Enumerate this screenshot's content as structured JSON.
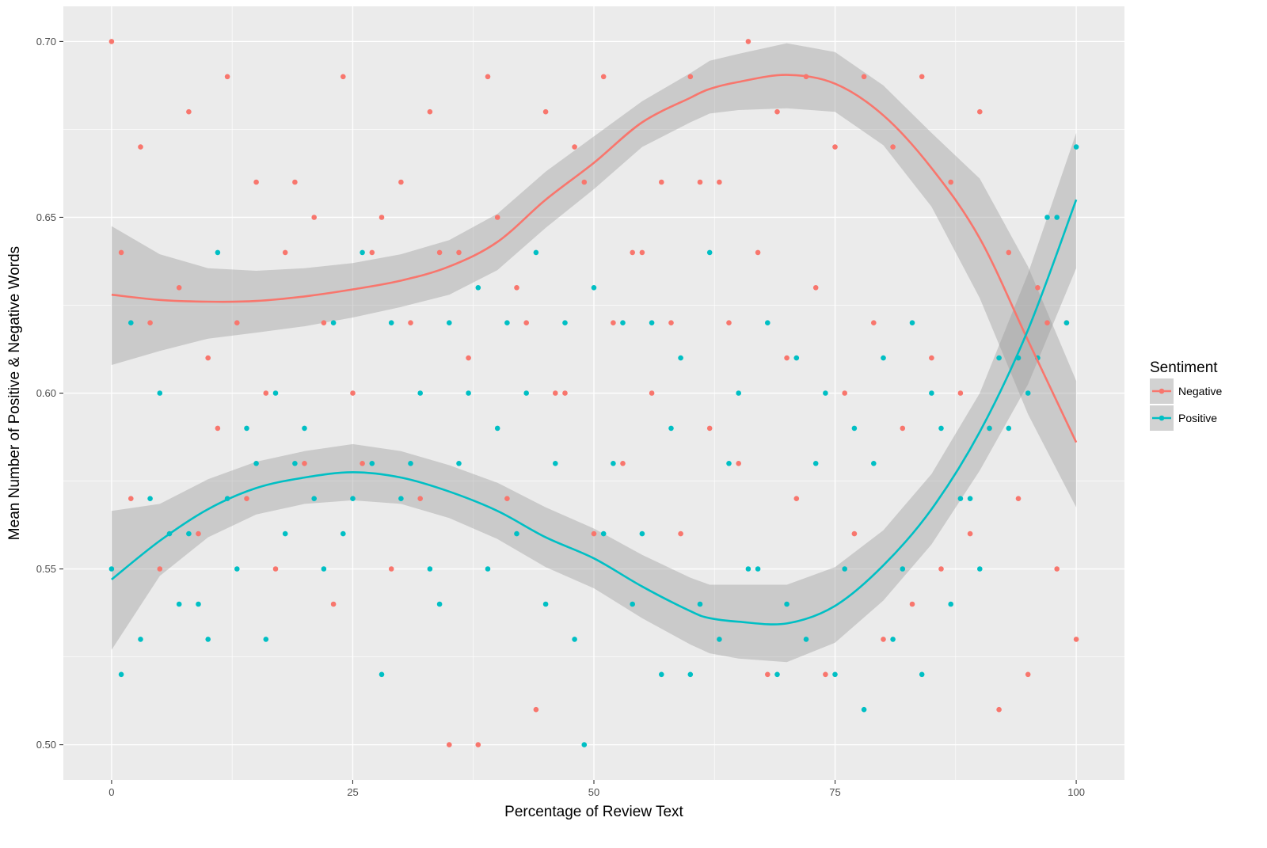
{
  "chart_data": {
    "type": "scatter",
    "xlabel": "Percentage of Review Text",
    "ylabel": "Mean Number of Positive & Negative Words",
    "xlim": [
      -5,
      105
    ],
    "ylim": [
      0.49,
      0.71
    ],
    "x_ticks": [
      0,
      25,
      50,
      75,
      100
    ],
    "x_tick_labels": [
      "0",
      "25",
      "50",
      "75",
      "100"
    ],
    "y_ticks": [
      0.5,
      0.55,
      0.6,
      0.65,
      0.7
    ],
    "y_tick_labels": [
      "0.50",
      "0.55",
      "0.60",
      "0.65",
      "0.70"
    ],
    "grid": true,
    "legend": {
      "title": "Sentiment",
      "position": "right",
      "items": [
        {
          "name": "Negative",
          "color": "#F8766D"
        },
        {
          "name": "Positive",
          "color": "#00BFC4"
        }
      ]
    },
    "series": [
      {
        "name": "Negative",
        "color": "#F8766D",
        "scatter_x": [
          0,
          3,
          8,
          12,
          15,
          18,
          21,
          24,
          27,
          30,
          33,
          36,
          39,
          42,
          45,
          48,
          51,
          54,
          57,
          60,
          63,
          66,
          69,
          72,
          75,
          78,
          81,
          84,
          87,
          90,
          93,
          96,
          99,
          1,
          4,
          7,
          10,
          13,
          16,
          19,
          22,
          25,
          28,
          31,
          34,
          37,
          40,
          43,
          46,
          49,
          52,
          55,
          58,
          61,
          64,
          67,
          70,
          73,
          76,
          79,
          82,
          85,
          88,
          91,
          94,
          97,
          100,
          2,
          5,
          9,
          11,
          14,
          17,
          20,
          23,
          26,
          29,
          32,
          35,
          38,
          41,
          44,
          47,
          50,
          53,
          56,
          59,
          62,
          65,
          68,
          71,
          74,
          77,
          80,
          83,
          86,
          89,
          92,
          95,
          98
        ],
        "scatter_y": [
          0.7,
          0.67,
          0.68,
          0.69,
          0.66,
          0.64,
          0.65,
          0.69,
          0.64,
          0.66,
          0.68,
          0.64,
          0.69,
          0.63,
          0.68,
          0.67,
          0.69,
          0.64,
          0.66,
          0.69,
          0.66,
          0.7,
          0.68,
          0.69,
          0.67,
          0.69,
          0.67,
          0.69,
          0.66,
          0.68,
          0.64,
          0.63,
          0.62,
          0.64,
          0.62,
          0.63,
          0.61,
          0.62,
          0.6,
          0.66,
          0.62,
          0.6,
          0.65,
          0.62,
          0.64,
          0.61,
          0.65,
          0.62,
          0.6,
          0.66,
          0.62,
          0.64,
          0.62,
          0.66,
          0.62,
          0.64,
          0.61,
          0.63,
          0.6,
          0.62,
          0.59,
          0.61,
          0.6,
          0.59,
          0.57,
          0.62,
          0.53,
          0.57,
          0.55,
          0.56,
          0.59,
          0.57,
          0.55,
          0.58,
          0.54,
          0.58,
          0.55,
          0.57,
          0.5,
          0.5,
          0.57,
          0.51,
          0.6,
          0.56,
          0.58,
          0.6,
          0.56,
          0.59,
          0.58,
          0.52,
          0.57,
          0.52,
          0.56,
          0.53,
          0.54,
          0.55,
          0.56,
          0.51,
          0.52,
          0.55
        ]
      },
      {
        "name": "Positive",
        "color": "#00BFC4",
        "scatter_x": [
          0,
          3,
          6,
          9,
          12,
          15,
          18,
          21,
          24,
          27,
          30,
          33,
          36,
          39,
          42,
          45,
          48,
          51,
          54,
          57,
          60,
          63,
          66,
          69,
          72,
          75,
          78,
          81,
          84,
          87,
          90,
          93,
          96,
          99,
          1,
          4,
          7,
          10,
          13,
          16,
          19,
          22,
          25,
          28,
          31,
          34,
          37,
          40,
          43,
          46,
          49,
          52,
          55,
          58,
          61,
          64,
          67,
          70,
          73,
          76,
          79,
          82,
          85,
          88,
          91,
          94,
          97,
          100,
          2,
          5,
          8,
          11,
          14,
          17,
          20,
          23,
          26,
          29,
          32,
          35,
          38,
          41,
          44,
          47,
          50,
          53,
          56,
          59,
          62,
          65,
          68,
          71,
          74,
          77,
          80,
          83,
          86,
          89,
          92,
          95,
          98
        ],
        "scatter_y": [
          0.55,
          0.53,
          0.56,
          0.54,
          0.57,
          0.58,
          0.56,
          0.57,
          0.56,
          0.58,
          0.57,
          0.55,
          0.58,
          0.55,
          0.56,
          0.54,
          0.53,
          0.56,
          0.54,
          0.52,
          0.52,
          0.53,
          0.55,
          0.52,
          0.53,
          0.52,
          0.51,
          0.53,
          0.52,
          0.54,
          0.55,
          0.59,
          0.61,
          0.62,
          0.52,
          0.57,
          0.54,
          0.53,
          0.55,
          0.53,
          0.58,
          0.55,
          0.57,
          0.52,
          0.58,
          0.54,
          0.6,
          0.59,
          0.6,
          0.58,
          0.5,
          0.58,
          0.56,
          0.59,
          0.54,
          0.58,
          0.55,
          0.54,
          0.58,
          0.55,
          0.58,
          0.55,
          0.6,
          0.57,
          0.59,
          0.61,
          0.65,
          0.67,
          0.62,
          0.6,
          0.56,
          0.64,
          0.59,
          0.6,
          0.59,
          0.62,
          0.64,
          0.62,
          0.6,
          0.62,
          0.63,
          0.62,
          0.64,
          0.62,
          0.63,
          0.62,
          0.62,
          0.61,
          0.64,
          0.6,
          0.62,
          0.61,
          0.6,
          0.59,
          0.61,
          0.62,
          0.59,
          0.57,
          0.61,
          0.6,
          0.65
        ]
      }
    ],
    "smooth": [
      {
        "name": "Negative",
        "x": [
          0,
          5,
          10,
          15,
          20,
          25,
          30,
          35,
          40,
          45,
          50,
          55,
          60,
          62,
          65,
          70,
          75,
          80,
          85,
          90,
          95,
          100
        ],
        "y": [
          0.628,
          0.6265,
          0.626,
          0.6262,
          0.6275,
          0.6295,
          0.632,
          0.636,
          0.643,
          0.655,
          0.6655,
          0.677,
          0.684,
          0.6865,
          0.6885,
          0.6905,
          0.688,
          0.679,
          0.664,
          0.644,
          0.615,
          0.586
        ],
        "band_lower": [
          0.608,
          0.612,
          0.6155,
          0.6172,
          0.619,
          0.6215,
          0.6245,
          0.628,
          0.635,
          0.647,
          0.658,
          0.67,
          0.677,
          0.6795,
          0.6805,
          0.681,
          0.68,
          0.6705,
          0.653,
          0.627,
          0.594,
          0.5675
        ],
        "band_upper": [
          0.6475,
          0.6395,
          0.6355,
          0.6348,
          0.6355,
          0.637,
          0.6395,
          0.6435,
          0.651,
          0.663,
          0.673,
          0.683,
          0.691,
          0.6945,
          0.6965,
          0.6995,
          0.697,
          0.6875,
          0.674,
          0.661,
          0.636,
          0.6035
        ]
      },
      {
        "name": "Positive",
        "x": [
          0,
          5,
          10,
          15,
          20,
          25,
          30,
          35,
          40,
          45,
          50,
          55,
          60,
          62,
          65,
          70,
          75,
          80,
          85,
          90,
          95,
          100
        ],
        "y": [
          0.547,
          0.558,
          0.567,
          0.573,
          0.576,
          0.5775,
          0.576,
          0.572,
          0.5665,
          0.559,
          0.553,
          0.545,
          0.538,
          0.536,
          0.535,
          0.5345,
          0.5395,
          0.551,
          0.567,
          0.589,
          0.618,
          0.655
        ],
        "band_lower": [
          0.527,
          0.548,
          0.559,
          0.5655,
          0.5685,
          0.5695,
          0.5685,
          0.5645,
          0.5585,
          0.5505,
          0.5445,
          0.536,
          0.5285,
          0.526,
          0.5245,
          0.5235,
          0.529,
          0.541,
          0.557,
          0.578,
          0.6025,
          0.6355
        ],
        "band_upper": [
          0.5665,
          0.5685,
          0.5755,
          0.5805,
          0.5835,
          0.5855,
          0.5835,
          0.5795,
          0.5745,
          0.5675,
          0.5615,
          0.554,
          0.5475,
          0.5455,
          0.5455,
          0.5455,
          0.5505,
          0.561,
          0.577,
          0.6,
          0.634,
          0.674
        ]
      }
    ]
  }
}
